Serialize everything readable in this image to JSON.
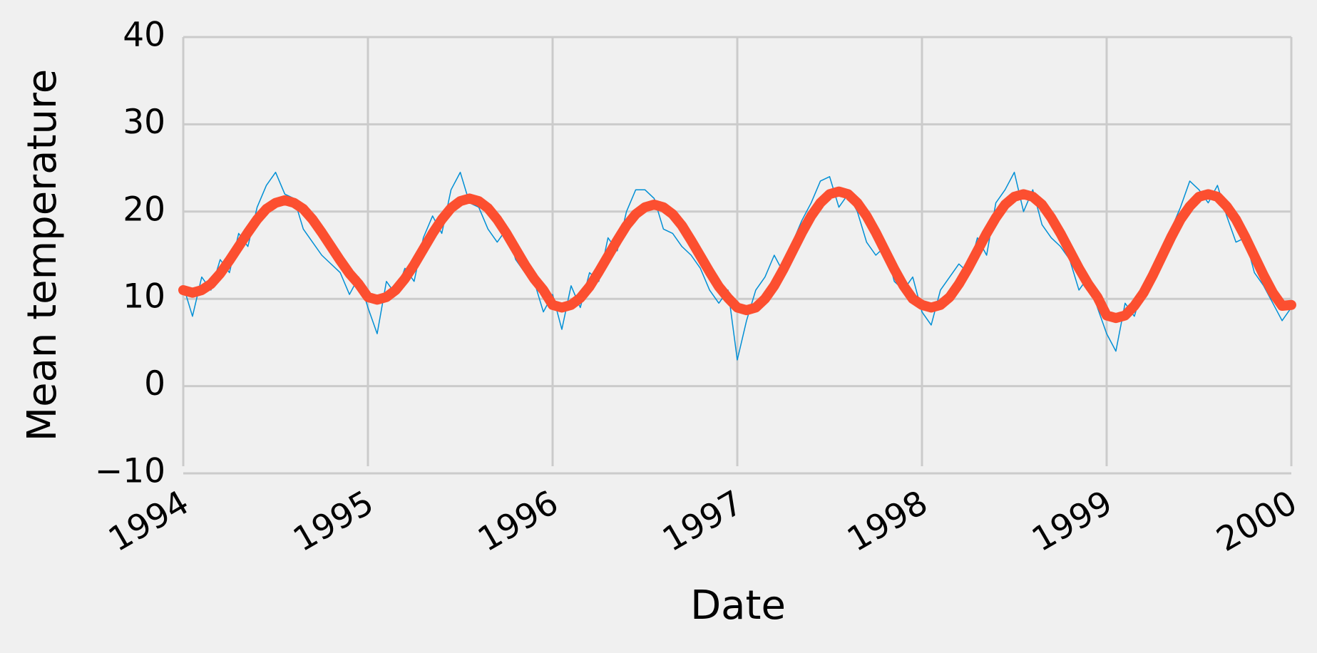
{
  "chart_data": {
    "type": "line",
    "x_label": "Date",
    "y_label": "Mean temperature",
    "x": [
      1994,
      1994.05,
      1994.1,
      1994.15,
      1994.2,
      1994.25,
      1994.3,
      1994.35,
      1994.4,
      1994.45,
      1994.5,
      1994.55,
      1994.6,
      1994.65,
      1994.7,
      1994.75,
      1994.8,
      1994.85,
      1994.9,
      1994.95,
      1995,
      1995.05,
      1995.1,
      1995.15,
      1995.2,
      1995.25,
      1995.3,
      1995.35,
      1995.4,
      1995.45,
      1995.5,
      1995.55,
      1995.6,
      1995.65,
      1995.7,
      1995.75,
      1995.8,
      1995.85,
      1995.9,
      1995.95,
      1996,
      1996.05,
      1996.1,
      1996.15,
      1996.2,
      1996.25,
      1996.3,
      1996.35,
      1996.4,
      1996.45,
      1996.5,
      1996.55,
      1996.6,
      1996.65,
      1996.7,
      1996.75,
      1996.8,
      1996.85,
      1996.9,
      1996.95,
      1997,
      1997.05,
      1997.1,
      1997.15,
      1997.2,
      1997.25,
      1997.3,
      1997.35,
      1997.4,
      1997.45,
      1997.5,
      1997.55,
      1997.6,
      1997.65,
      1997.7,
      1997.75,
      1997.8,
      1997.85,
      1997.9,
      1997.95,
      1998,
      1998.05,
      1998.1,
      1998.15,
      1998.2,
      1998.25,
      1998.3,
      1998.35,
      1998.4,
      1998.45,
      1998.5,
      1998.55,
      1998.6,
      1998.65,
      1998.7,
      1998.75,
      1998.8,
      1998.85,
      1998.9,
      1998.95,
      1999,
      1999.05,
      1999.1,
      1999.15,
      1999.2,
      1999.25,
      1999.3,
      1999.35,
      1999.4,
      1999.45,
      1999.5,
      1999.55,
      1999.6,
      1999.65,
      1999.7,
      1999.75,
      1999.8,
      1999.85,
      1999.9,
      1999.95,
      2000
    ],
    "series": [
      {
        "color": "#008fd5",
        "width": 1.5,
        "values": [
          11.5,
          8.0,
          12.5,
          11.0,
          14.5,
          13.0,
          17.5,
          16.0,
          20.5,
          23.0,
          24.5,
          22.0,
          21.5,
          18.0,
          16.5,
          15.0,
          14.0,
          13.0,
          10.5,
          12.5,
          9.0,
          6.0,
          12.0,
          10.5,
          13.5,
          12.0,
          17.0,
          19.5,
          17.5,
          22.5,
          24.5,
          21.0,
          20.5,
          18.0,
          16.5,
          18.0,
          14.5,
          13.0,
          12.0,
          8.5,
          10.5,
          6.5,
          11.5,
          9.0,
          13.0,
          12.0,
          17.0,
          15.5,
          20.0,
          22.5,
          22.5,
          21.5,
          18.0,
          17.5,
          16.0,
          15.0,
          13.5,
          11.0,
          9.5,
          11.0,
          3.0,
          7.5,
          11.0,
          12.5,
          15.0,
          13.0,
          16.5,
          19.0,
          21.0,
          23.5,
          24.0,
          20.5,
          22.0,
          20.0,
          16.5,
          15.0,
          16.0,
          12.0,
          11.0,
          12.5,
          8.5,
          7.0,
          11.0,
          12.5,
          14.0,
          13.0,
          17.0,
          15.0,
          21.0,
          22.5,
          24.5,
          20.0,
          22.5,
          18.5,
          17.0,
          16.0,
          14.5,
          11.0,
          12.5,
          9.0,
          6.0,
          4.0,
          9.5,
          8.0,
          11.5,
          13.0,
          14.5,
          18.0,
          20.5,
          23.5,
          22.5,
          21.0,
          23.0,
          19.5,
          16.5,
          17.0,
          13.0,
          11.5,
          9.5,
          7.5,
          9.0
        ]
      },
      {
        "color": "#fc4f30",
        "width": 14,
        "values": [
          11.0,
          10.7,
          11.0,
          11.7,
          12.9,
          14.4,
          16.0,
          17.6,
          19.1,
          20.3,
          21.0,
          21.3,
          21.0,
          20.3,
          19.1,
          17.6,
          16.0,
          14.4,
          12.9,
          11.7,
          10.2,
          9.9,
          10.2,
          11.0,
          12.3,
          13.9,
          15.7,
          17.5,
          19.1,
          20.4,
          21.2,
          21.5,
          21.2,
          20.4,
          19.1,
          17.5,
          15.7,
          13.9,
          12.3,
          11.0,
          9.3,
          9.0,
          9.3,
          10.1,
          11.4,
          13.1,
          14.9,
          16.7,
          18.4,
          19.7,
          20.5,
          20.8,
          20.5,
          19.7,
          18.4,
          16.7,
          14.9,
          13.1,
          11.4,
          10.1,
          9.0,
          8.7,
          9.0,
          10.0,
          11.5,
          13.4,
          15.5,
          17.6,
          19.5,
          21.0,
          22.0,
          22.3,
          22.0,
          21.0,
          19.5,
          17.6,
          15.5,
          13.4,
          11.5,
          10.0,
          9.3,
          9.0,
          9.3,
          10.2,
          11.7,
          13.5,
          15.5,
          17.5,
          19.3,
          20.8,
          21.7,
          22.0,
          21.7,
          20.8,
          19.3,
          17.5,
          15.5,
          13.5,
          11.7,
          10.2,
          8.1,
          7.8,
          8.1,
          9.2,
          10.7,
          12.7,
          14.9,
          17.1,
          19.1,
          20.6,
          21.7,
          22.0,
          21.7,
          20.6,
          19.1,
          17.1,
          14.9,
          12.7,
          10.7,
          9.2,
          9.3
        ]
      }
    ],
    "xlim": [
      1994,
      2000
    ],
    "xticks": [
      1994,
      1995,
      1996,
      1997,
      1998,
      1999,
      2000
    ],
    "ylim": [
      -10,
      40
    ],
    "yticks": [
      {
        "value": -10,
        "label": "−10"
      },
      0,
      10,
      20,
      30,
      40
    ],
    "grid": true,
    "grid_color": "#cbcbcb",
    "background": "#f0f0f0"
  }
}
